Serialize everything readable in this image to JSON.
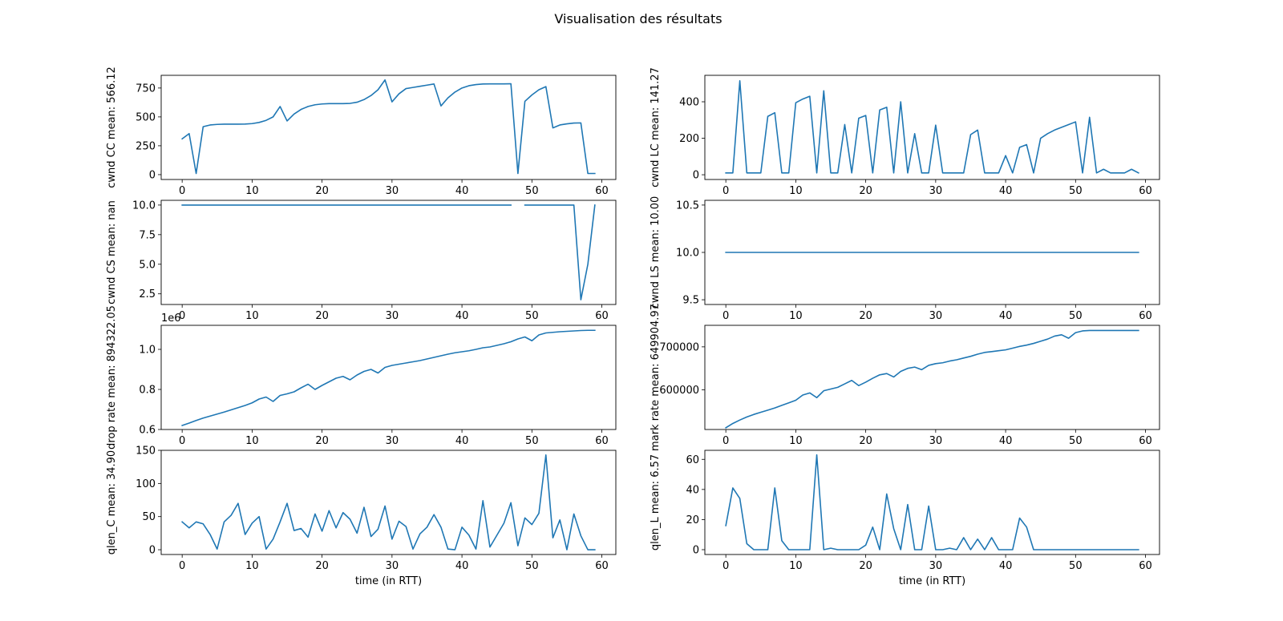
{
  "title": "Visualisation des résultats",
  "line_color": "#1f77b4",
  "chart_data": [
    {
      "type": "line",
      "ylabel": "cwnd CC mean: 566.12",
      "xlabel": "",
      "xlim": [
        -3,
        62
      ],
      "ylim": [
        -42,
        860
      ],
      "xticks": [
        0,
        10,
        20,
        30,
        40,
        50,
        60
      ],
      "yticks": [
        0,
        250,
        500,
        750
      ],
      "ytick_labels": [
        "0",
        "250",
        "500",
        "750"
      ],
      "x": [
        0,
        1,
        2,
        3,
        4,
        5,
        6,
        7,
        8,
        9,
        10,
        11,
        12,
        13,
        14,
        15,
        16,
        17,
        18,
        19,
        20,
        21,
        22,
        23,
        24,
        25,
        26,
        27,
        28,
        29,
        30,
        31,
        32,
        33,
        34,
        35,
        36,
        37,
        38,
        39,
        40,
        41,
        42,
        43,
        44,
        45,
        46,
        47,
        48,
        49,
        50,
        51,
        52,
        53,
        54,
        55,
        56,
        57,
        58,
        59
      ],
      "y": [
        310,
        355,
        10,
        415,
        430,
        435,
        437,
        437,
        437,
        438,
        442,
        452,
        470,
        500,
        590,
        465,
        525,
        565,
        590,
        605,
        612,
        615,
        615,
        615,
        617,
        627,
        650,
        685,
        735,
        820,
        630,
        700,
        745,
        755,
        765,
        775,
        785,
        595,
        665,
        715,
        750,
        770,
        780,
        785,
        786,
        786,
        786,
        787,
        10,
        635,
        690,
        735,
        762,
        405,
        430,
        440,
        447,
        448,
        10,
        10
      ]
    },
    {
      "type": "line",
      "ylabel": "cwnd LC mean: 141.27",
      "xlabel": "",
      "xlim": [
        -3,
        62
      ],
      "ylim": [
        -26,
        545
      ],
      "xticks": [
        0,
        10,
        20,
        30,
        40,
        50,
        60
      ],
      "yticks": [
        0,
        200,
        400
      ],
      "ytick_labels": [
        "0",
        "200",
        "400"
      ],
      "x": [
        0,
        1,
        2,
        3,
        4,
        5,
        6,
        7,
        8,
        9,
        10,
        11,
        12,
        13,
        14,
        15,
        16,
        17,
        18,
        19,
        20,
        21,
        22,
        23,
        24,
        25,
        26,
        27,
        28,
        29,
        30,
        31,
        32,
        33,
        34,
        35,
        36,
        37,
        38,
        39,
        40,
        41,
        42,
        43,
        44,
        45,
        46,
        47,
        48,
        49,
        50,
        51,
        52,
        53,
        54,
        55,
        56,
        57,
        58,
        59
      ],
      "y": [
        10,
        10,
        515,
        10,
        10,
        10,
        320,
        340,
        10,
        10,
        395,
        415,
        430,
        10,
        460,
        10,
        10,
        275,
        10,
        310,
        325,
        10,
        355,
        370,
        10,
        400,
        10,
        225,
        10,
        10,
        272,
        10,
        10,
        10,
        10,
        220,
        245,
        10,
        10,
        10,
        105,
        10,
        150,
        165,
        10,
        200,
        225,
        245,
        260,
        275,
        290,
        10,
        315,
        10,
        30,
        10,
        10,
        10,
        30,
        10
      ]
    },
    {
      "type": "line",
      "ylabel": "cwnd CS mean: nan",
      "xlabel": "",
      "xlim": [
        -3,
        62
      ],
      "ylim": [
        1.6,
        10.4
      ],
      "xticks": [
        0,
        10,
        20,
        30,
        40,
        50,
        60
      ],
      "yticks": [
        2.5,
        5.0,
        7.5,
        10.0
      ],
      "ytick_labels": [
        "2.5",
        "5.0",
        "7.5",
        "10.0"
      ],
      "x": [
        0,
        1,
        2,
        3,
        4,
        5,
        6,
        7,
        8,
        9,
        10,
        11,
        12,
        13,
        14,
        15,
        16,
        17,
        18,
        19,
        20,
        21,
        22,
        23,
        24,
        25,
        26,
        27,
        28,
        29,
        30,
        31,
        32,
        33,
        34,
        35,
        36,
        37,
        38,
        39,
        40,
        41,
        42,
        43,
        44,
        45,
        46,
        47,
        48,
        49,
        50,
        51,
        52,
        53,
        54,
        55,
        56,
        57,
        58,
        59
      ],
      "y": [
        10,
        10,
        10,
        10,
        10,
        10,
        10,
        10,
        10,
        10,
        10,
        10,
        10,
        10,
        10,
        10,
        10,
        10,
        10,
        10,
        10,
        10,
        10,
        10,
        10,
        10,
        10,
        10,
        10,
        10,
        10,
        10,
        10,
        10,
        10,
        10,
        10,
        10,
        10,
        10,
        10,
        10,
        10,
        10,
        10,
        10,
        10,
        10,
        null,
        10,
        10,
        10,
        10,
        10,
        10,
        10,
        10,
        2,
        5,
        10
      ]
    },
    {
      "type": "line",
      "ylabel": "cwnd LS mean: 10.00",
      "xlabel": "",
      "xlim": [
        -3,
        62
      ],
      "ylim": [
        9.45,
        10.55
      ],
      "xticks": [
        0,
        10,
        20,
        30,
        40,
        50,
        60
      ],
      "yticks": [
        9.5,
        10.0,
        10.5
      ],
      "ytick_labels": [
        "9.5",
        "10.0",
        "10.5"
      ],
      "x": [
        0,
        1,
        2,
        3,
        4,
        5,
        6,
        7,
        8,
        9,
        10,
        11,
        12,
        13,
        14,
        15,
        16,
        17,
        18,
        19,
        20,
        21,
        22,
        23,
        24,
        25,
        26,
        27,
        28,
        29,
        30,
        31,
        32,
        33,
        34,
        35,
        36,
        37,
        38,
        39,
        40,
        41,
        42,
        43,
        44,
        45,
        46,
        47,
        48,
        49,
        50,
        51,
        52,
        53,
        54,
        55,
        56,
        57,
        58,
        59
      ],
      "y": [
        10,
        10,
        10,
        10,
        10,
        10,
        10,
        10,
        10,
        10,
        10,
        10,
        10,
        10,
        10,
        10,
        10,
        10,
        10,
        10,
        10,
        10,
        10,
        10,
        10,
        10,
        10,
        10,
        10,
        10,
        10,
        10,
        10,
        10,
        10,
        10,
        10,
        10,
        10,
        10,
        10,
        10,
        10,
        10,
        10,
        10,
        10,
        10,
        10,
        10,
        10,
        10,
        10,
        10,
        10,
        10,
        10,
        10,
        10,
        10
      ]
    },
    {
      "type": "line",
      "ylabel": "drop rate mean: 894322.05",
      "xlabel": "",
      "offset_label": "1e6",
      "xlim": [
        -3,
        62
      ],
      "ylim": [
        0.6,
        1.12
      ],
      "xticks": [
        0,
        10,
        20,
        30,
        40,
        50,
        60
      ],
      "yticks": [
        0.6,
        0.8,
        1.0
      ],
      "ytick_labels": [
        "0.6",
        "0.8",
        "1.0"
      ],
      "x": [
        0,
        1,
        2,
        3,
        4,
        5,
        6,
        7,
        8,
        9,
        10,
        11,
        12,
        13,
        14,
        15,
        16,
        17,
        18,
        19,
        20,
        21,
        22,
        23,
        24,
        25,
        26,
        27,
        28,
        29,
        30,
        31,
        32,
        33,
        34,
        35,
        36,
        37,
        38,
        39,
        40,
        41,
        42,
        43,
        44,
        45,
        46,
        47,
        48,
        49,
        50,
        51,
        52,
        53,
        54,
        55,
        56,
        57,
        58,
        59
      ],
      "y": [
        0.62,
        0.632,
        0.645,
        0.657,
        0.667,
        0.677,
        0.687,
        0.698,
        0.709,
        0.72,
        0.733,
        0.752,
        0.762,
        0.74,
        0.77,
        0.778,
        0.788,
        0.808,
        0.826,
        0.8,
        0.82,
        0.838,
        0.856,
        0.865,
        0.848,
        0.872,
        0.89,
        0.9,
        0.882,
        0.91,
        0.92,
        0.926,
        0.932,
        0.938,
        0.944,
        0.952,
        0.96,
        0.968,
        0.976,
        0.983,
        0.988,
        0.993,
        1.0,
        1.008,
        1.012,
        1.02,
        1.028,
        1.038,
        1.052,
        1.062,
        1.043,
        1.072,
        1.082,
        1.085,
        1.088,
        1.09,
        1.092,
        1.094,
        1.095,
        1.095
      ]
    },
    {
      "type": "line",
      "ylabel": "mark rate mean: 649904.97",
      "xlabel": "",
      "xlim": [
        -3,
        62
      ],
      "ylim": [
        508000,
        750000
      ],
      "xticks": [
        0,
        10,
        20,
        30,
        40,
        50,
        60
      ],
      "yticks": [
        600000,
        700000
      ],
      "ytick_labels": [
        "600000",
        "700000"
      ],
      "x": [
        0,
        1,
        2,
        3,
        4,
        5,
        6,
        7,
        8,
        9,
        10,
        11,
        12,
        13,
        14,
        15,
        16,
        17,
        18,
        19,
        20,
        21,
        22,
        23,
        24,
        25,
        26,
        27,
        28,
        29,
        30,
        31,
        32,
        33,
        34,
        35,
        36,
        37,
        38,
        39,
        40,
        41,
        42,
        43,
        44,
        45,
        46,
        47,
        48,
        49,
        50,
        51,
        52,
        53,
        54,
        55,
        56,
        57,
        58,
        59
      ],
      "y": [
        512000,
        522000,
        530000,
        537000,
        543000,
        548000,
        553000,
        558000,
        564000,
        570000,
        576000,
        588000,
        593000,
        582000,
        598000,
        602000,
        606000,
        614000,
        622000,
        610000,
        618000,
        627000,
        635000,
        638000,
        630000,
        643000,
        650000,
        653000,
        647000,
        657000,
        661000,
        663000,
        667000,
        670000,
        674000,
        678000,
        683000,
        687000,
        689000,
        691000,
        693000,
        697000,
        701000,
        704000,
        708000,
        713000,
        718000,
        725000,
        728000,
        720000,
        733000,
        737000,
        738000,
        738000,
        738000,
        738000,
        738000,
        738000,
        738000,
        738000
      ]
    },
    {
      "type": "line",
      "ylabel": "qlen_C mean: 34.90",
      "xlabel": "time (in RTT)",
      "xlim": [
        -3,
        62
      ],
      "ylim": [
        -7.2,
        150
      ],
      "xticks": [
        0,
        10,
        20,
        30,
        40,
        50,
        60
      ],
      "yticks": [
        0,
        50,
        100,
        150
      ],
      "ytick_labels": [
        "0",
        "50",
        "100",
        "150"
      ],
      "x": [
        0,
        1,
        2,
        3,
        4,
        5,
        6,
        7,
        8,
        9,
        10,
        11,
        12,
        13,
        14,
        15,
        16,
        17,
        18,
        19,
        20,
        21,
        22,
        23,
        24,
        25,
        26,
        27,
        28,
        29,
        30,
        31,
        32,
        33,
        34,
        35,
        36,
        37,
        38,
        39,
        40,
        41,
        42,
        43,
        44,
        45,
        46,
        47,
        48,
        49,
        50,
        51,
        52,
        53,
        54,
        55,
        56,
        57,
        58,
        59
      ],
      "y": [
        42,
        33,
        42,
        39,
        23,
        1,
        42,
        52,
        70,
        23,
        40,
        50,
        1,
        16,
        42,
        70,
        29,
        32,
        19,
        54,
        28,
        59,
        33,
        56,
        46,
        25,
        64,
        20,
        31,
        66,
        16,
        43,
        35,
        1,
        24,
        34,
        53,
        34,
        1,
        0,
        34,
        22,
        1,
        74,
        4,
        22,
        40,
        71,
        6,
        48,
        38,
        55,
        143,
        18,
        45,
        0,
        54,
        21,
        0,
        0
      ]
    },
    {
      "type": "line",
      "ylabel": "qlen_L mean: 6.57",
      "xlabel": "time (in RTT)",
      "xlim": [
        -3,
        62
      ],
      "ylim": [
        -3.2,
        66
      ],
      "xticks": [
        0,
        10,
        20,
        30,
        40,
        50,
        60
      ],
      "yticks": [
        0,
        20,
        40,
        60
      ],
      "ytick_labels": [
        "0",
        "20",
        "40",
        "60"
      ],
      "x": [
        0,
        1,
        2,
        3,
        4,
        5,
        6,
        7,
        8,
        9,
        10,
        11,
        12,
        13,
        14,
        15,
        16,
        17,
        18,
        19,
        20,
        21,
        22,
        23,
        24,
        25,
        26,
        27,
        28,
        29,
        30,
        31,
        32,
        33,
        34,
        35,
        36,
        37,
        38,
        39,
        40,
        41,
        42,
        43,
        44,
        45,
        46,
        47,
        48,
        49,
        50,
        51,
        52,
        53,
        54,
        55,
        56,
        57,
        58,
        59
      ],
      "y": [
        16,
        41,
        34,
        4,
        0,
        0,
        0,
        41,
        6,
        0,
        0,
        0,
        0,
        63,
        0,
        1,
        0,
        0,
        0,
        0,
        3,
        15,
        0,
        37,
        14,
        0,
        30,
        0,
        0,
        29,
        0,
        0,
        1,
        0,
        8,
        0,
        7,
        0,
        8,
        0,
        0,
        0,
        21,
        15,
        0,
        0,
        0,
        0,
        0,
        0,
        0,
        0,
        0,
        0,
        0,
        0,
        0,
        0,
        0,
        0
      ]
    }
  ]
}
